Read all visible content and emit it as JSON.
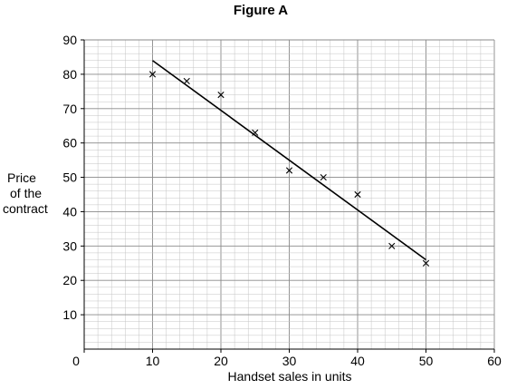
{
  "chart_data": {
    "type": "scatter",
    "title": "Figure A",
    "xlabel": "Handset sales in units",
    "ylabel": [
      "Price",
      "of the",
      "contract"
    ],
    "xlim": [
      0,
      60
    ],
    "ylim": [
      0,
      90
    ],
    "x_ticks": [
      "0",
      "10",
      "20",
      "30",
      "40",
      "50",
      "60"
    ],
    "y_ticks": [
      "10",
      "20",
      "30",
      "40",
      "50",
      "60",
      "70",
      "80",
      "90"
    ],
    "grid": true,
    "series": [
      {
        "x": [
          10,
          15,
          20,
          25,
          30,
          35,
          40,
          45,
          50
        ],
        "y": [
          80,
          78,
          74,
          63,
          52,
          50,
          45,
          30,
          25
        ]
      }
    ],
    "trendline": {
      "x": [
        10,
        50
      ],
      "y": [
        84,
        26
      ]
    }
  }
}
